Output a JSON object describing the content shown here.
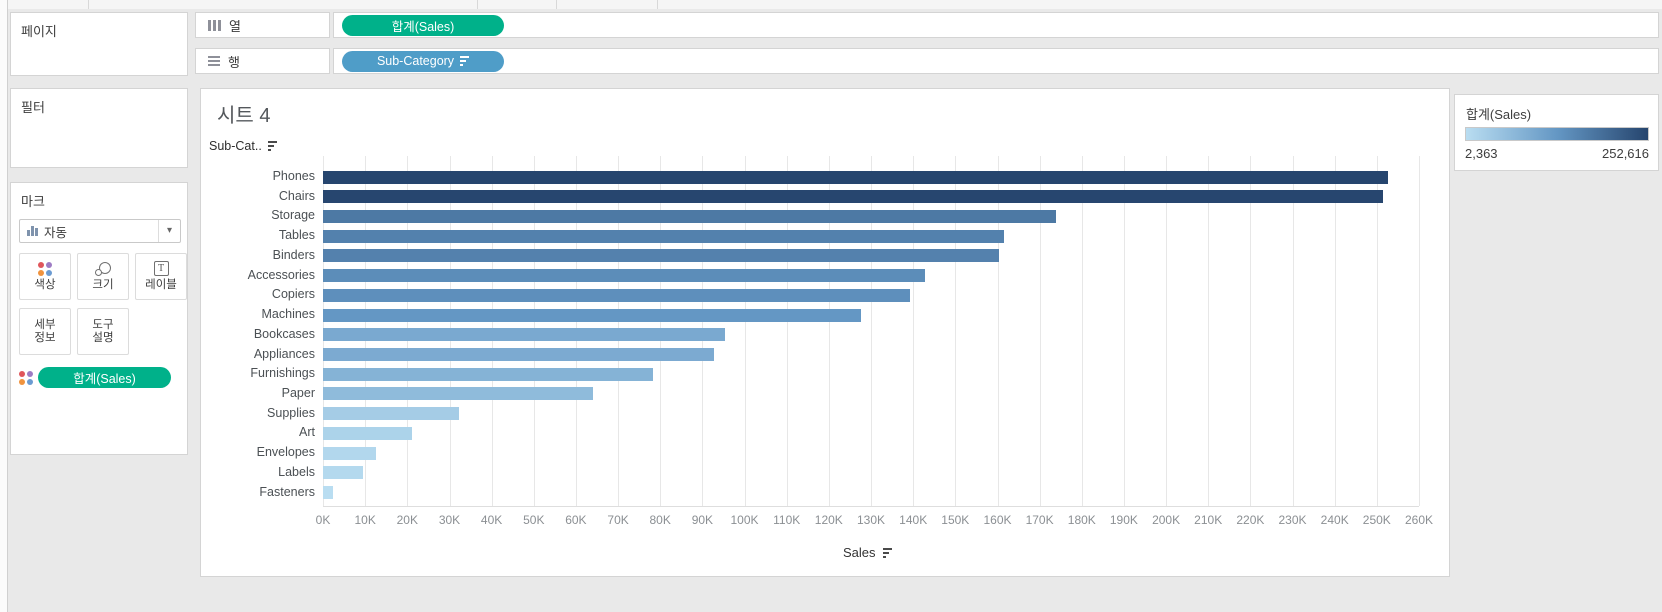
{
  "workspace": {
    "background": "#e9e9e9",
    "panel_border": "#d4d4d4"
  },
  "sidebar": {
    "pages": {
      "title": "페이지"
    },
    "filters": {
      "title": "필터"
    },
    "marks": {
      "title": "마크",
      "mark_type_dropdown": {
        "value": "자동"
      },
      "buttons": [
        {
          "id": "color",
          "label": "색상"
        },
        {
          "id": "size",
          "label": "크기"
        },
        {
          "id": "label",
          "label": "레이블"
        },
        {
          "id": "detail",
          "label": "세부\n정보"
        },
        {
          "id": "tooltip",
          "label": "도구\n설명"
        }
      ],
      "color_icon_dots": [
        "#e0565b",
        "#9e7cc4",
        "#f0933e",
        "#6b9bd2"
      ],
      "encoding_pill": {
        "label": "합계(Sales)",
        "color": "#00b18a"
      }
    }
  },
  "shelves": {
    "columns": {
      "label": "열",
      "pill": {
        "label": "합계(Sales)",
        "color": "#00b18a"
      }
    },
    "rows": {
      "label": "행",
      "pill": {
        "label": "Sub-Category",
        "color": "#4f9dc8",
        "sorted": true
      }
    }
  },
  "sheet": {
    "title": "시트 4",
    "row_field_label": "Sub-Cat.."
  },
  "legend": {
    "title": "합계(Sales)",
    "min_label": "2,363",
    "max_label": "252,616"
  },
  "chart_data": {
    "type": "bar",
    "orientation": "horizontal",
    "title": "시트 4",
    "categories": [
      "Phones",
      "Chairs",
      "Storage",
      "Tables",
      "Binders",
      "Accessories",
      "Copiers",
      "Machines",
      "Bookcases",
      "Appliances",
      "Furnishings",
      "Paper",
      "Supplies",
      "Art",
      "Envelopes",
      "Labels",
      "Fasteners"
    ],
    "values": [
      252616,
      251400,
      173900,
      161600,
      160400,
      142900,
      139300,
      127700,
      95300,
      92700,
      78200,
      64000,
      32200,
      21100,
      12600,
      9500,
      2363
    ],
    "xlabel": "Sales",
    "x_ticks": [
      "0K",
      "10K",
      "20K",
      "30K",
      "40K",
      "50K",
      "60K",
      "70K",
      "80K",
      "90K",
      "100K",
      "110K",
      "120K",
      "130K",
      "140K",
      "150K",
      "160K",
      "170K",
      "180K",
      "190K",
      "200K",
      "210K",
      "220K",
      "230K",
      "240K",
      "250K",
      "260K"
    ],
    "xlim": [
      0,
      260000
    ],
    "grid": true,
    "sort": "descending",
    "color_scale": {
      "stops": [
        "#b9ddf1",
        "#6497c4",
        "#26456e"
      ],
      "domain": [
        2363,
        252616
      ]
    }
  }
}
